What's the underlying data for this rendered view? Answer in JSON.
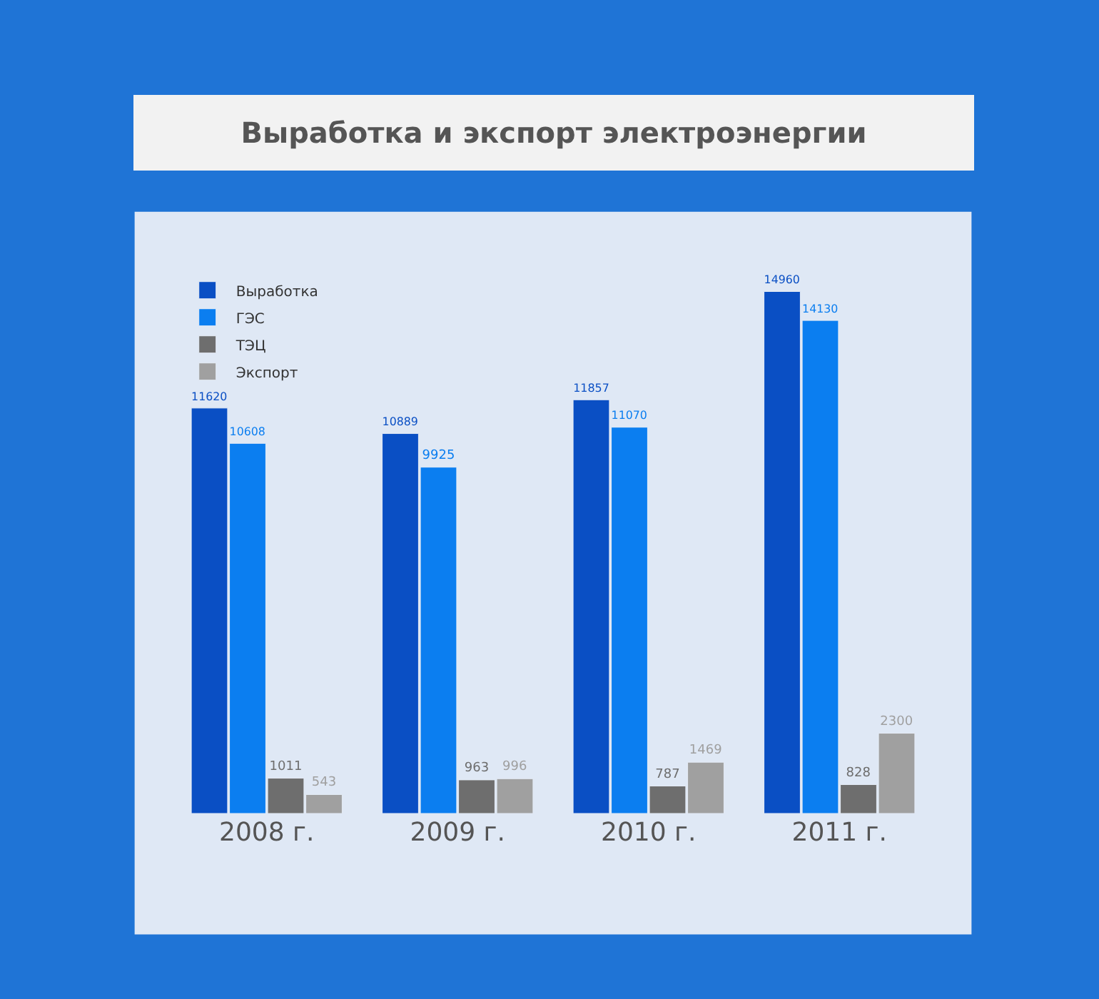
{
  "chart_data": {
    "type": "bar",
    "title": "Выработка и экспорт электроэнергии",
    "categories": [
      "2008 г.",
      "2009 г.",
      "2010 г.",
      "2011 г."
    ],
    "series": [
      {
        "name": "Выработка",
        "color": "#0a4fc4",
        "values": [
          11620,
          10889,
          11857,
          14960
        ]
      },
      {
        "name": "ГЭС",
        "color": "#0b7ef0",
        "values": [
          10608,
          9925,
          11070,
          14130
        ]
      },
      {
        "name": "ТЭЦ",
        "color": "#6e6e6e",
        "values": [
          1011,
          963,
          787,
          828
        ]
      },
      {
        "name": "Экспорт",
        "color": "#a0a0a0",
        "values": [
          543,
          996,
          1469,
          2300
        ]
      }
    ],
    "data_labels": true,
    "legend": "top left",
    "grid": false
  }
}
